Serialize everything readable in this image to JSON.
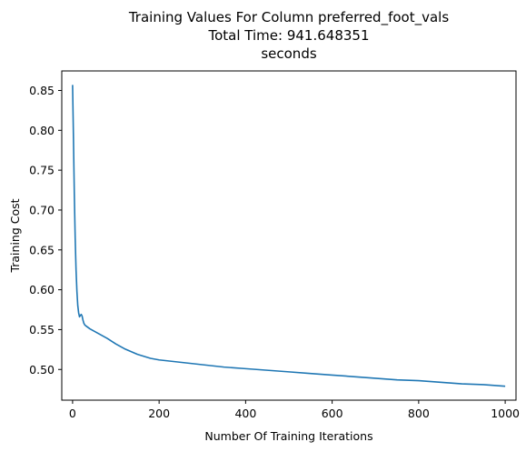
{
  "chart_data": {
    "type": "line",
    "title_lines": [
      "Training Values For Column preferred_foot_vals",
      "Total Time: 941.648351",
      "seconds"
    ],
    "xlabel": "Number Of Training Iterations",
    "ylabel": "Training Cost",
    "xlim": [
      -25,
      1025
    ],
    "ylim": [
      0.4615,
      0.8745
    ],
    "xticks": [
      0,
      200,
      400,
      600,
      800,
      1000
    ],
    "yticks": [
      0.5,
      0.55,
      0.6,
      0.65,
      0.7,
      0.75,
      0.8,
      0.85
    ],
    "xtick_labels": [
      "0",
      "200",
      "400",
      "600",
      "800",
      "1000"
    ],
    "ytick_labels": [
      "0.50",
      "0.55",
      "0.60",
      "0.65",
      "0.70",
      "0.75",
      "0.80",
      "0.85"
    ],
    "grid": false,
    "line_color": "#1f77b4",
    "series": [
      {
        "x": [
          0,
          2,
          4,
          6,
          8,
          10,
          12,
          14,
          16,
          18,
          20,
          22,
          24,
          26,
          28,
          30,
          35,
          40,
          50,
          60,
          80,
          100,
          120,
          150,
          180,
          200,
          250,
          300,
          350,
          400,
          450,
          500,
          550,
          600,
          650,
          700,
          750,
          800,
          850,
          900,
          950,
          1000
        ],
        "y": [
          0.857,
          0.79,
          0.72,
          0.665,
          0.625,
          0.598,
          0.58,
          0.571,
          0.566,
          0.568,
          0.569,
          0.567,
          0.562,
          0.558,
          0.556,
          0.555,
          0.553,
          0.551,
          0.548,
          0.545,
          0.539,
          0.532,
          0.526,
          0.519,
          0.514,
          0.512,
          0.509,
          0.506,
          0.503,
          0.501,
          0.499,
          0.497,
          0.495,
          0.493,
          0.491,
          0.489,
          0.487,
          0.486,
          0.484,
          0.482,
          0.481,
          0.479
        ]
      }
    ]
  }
}
